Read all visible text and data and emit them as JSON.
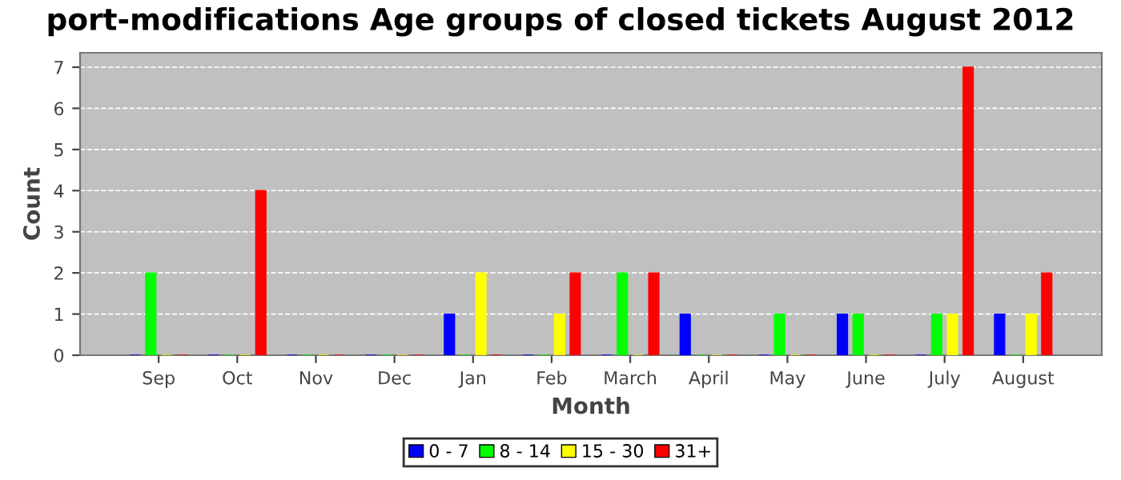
{
  "chart_data": {
    "type": "bar",
    "title": "port-modifications Age groups of closed tickets August 2012",
    "xlabel": "Month",
    "ylabel": "Count",
    "categories": [
      "Sep",
      "Oct",
      "Nov",
      "Dec",
      "Jan",
      "Feb",
      "March",
      "April",
      "May",
      "June",
      "July",
      "August"
    ],
    "series": [
      {
        "name": "0 - 7",
        "color": "#0000ff",
        "values": [
          0,
          0,
          0,
          0,
          1,
          0,
          0,
          1,
          0,
          1,
          0,
          1
        ]
      },
      {
        "name": "8 - 14",
        "color": "#00ff00",
        "values": [
          2,
          0,
          0,
          0,
          0,
          0,
          2,
          0,
          1,
          1,
          1,
          0
        ]
      },
      {
        "name": "15 - 30",
        "color": "#ffff00",
        "values": [
          0,
          0,
          0,
          0,
          2,
          1,
          0,
          0,
          0,
          0,
          1,
          1
        ]
      },
      {
        "name": "31+",
        "color": "#ff0000",
        "values": [
          0,
          4,
          0,
          0,
          0,
          2,
          2,
          0,
          0,
          0,
          7,
          2
        ]
      }
    ],
    "ylim": [
      0,
      7.35
    ],
    "yticks": [
      0,
      1,
      2,
      3,
      4,
      5,
      6,
      7
    ],
    "grid": "y",
    "legend": "bottom"
  }
}
